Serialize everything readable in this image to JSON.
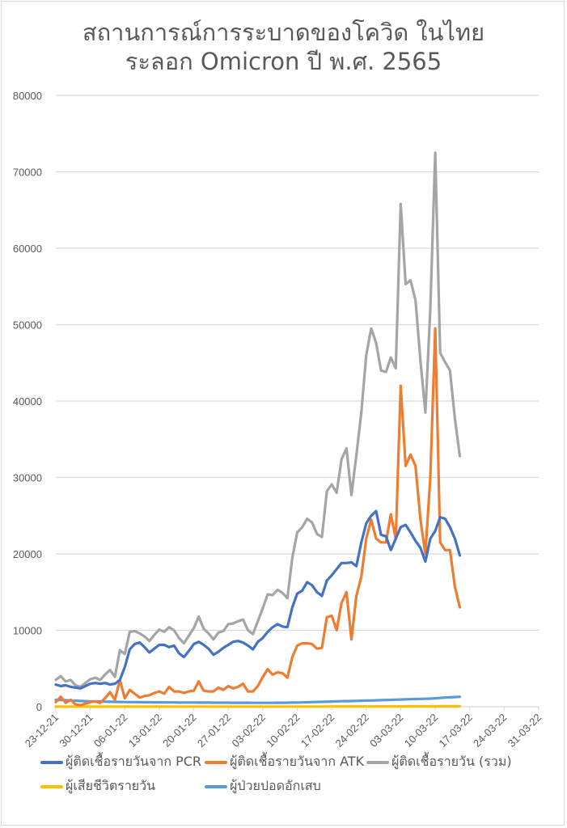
{
  "chart_data": {
    "type": "line",
    "title": [
      "สถานการณ์การระบาดของโควิด ในไทย",
      "ระลอก Omicron ปี พ.ศ. 2565"
    ],
    "xlabel": "",
    "ylabel": "",
    "ylim": [
      0,
      80000
    ],
    "yticks": [
      "0",
      "10000",
      "20000",
      "30000",
      "40000",
      "50000",
      "60000",
      "70000",
      "80000"
    ],
    "xlim": [
      "23-12-21",
      "31-03-22"
    ],
    "xticks": [
      "23-12-21",
      "30-12-21",
      "06-01-22",
      "13-01-22",
      "20-01-22",
      "27-01-22",
      "03-02-22",
      "10-02-22",
      "17-02-22",
      "24-02-22",
      "03-03-22",
      "10-03-22",
      "17-03-22",
      "24-03-22",
      "31-03-22"
    ],
    "grid": "horizontal",
    "legend_position": "bottom",
    "dates": [
      "23-12-21",
      "24-12-21",
      "25-12-21",
      "26-12-21",
      "27-12-21",
      "28-12-21",
      "29-12-21",
      "30-12-21",
      "31-12-21",
      "01-01-22",
      "02-01-22",
      "03-01-22",
      "04-01-22",
      "05-01-22",
      "06-01-22",
      "07-01-22",
      "08-01-22",
      "09-01-22",
      "10-01-22",
      "11-01-22",
      "12-01-22",
      "13-01-22",
      "14-01-22",
      "15-01-22",
      "16-01-22",
      "17-01-22",
      "18-01-22",
      "19-01-22",
      "20-01-22",
      "21-01-22",
      "22-01-22",
      "23-01-22",
      "24-01-22",
      "25-01-22",
      "26-01-22",
      "27-01-22",
      "28-01-22",
      "29-01-22",
      "30-01-22",
      "31-01-22",
      "01-02-22",
      "02-02-22",
      "03-02-22",
      "04-02-22",
      "05-02-22",
      "06-02-22",
      "07-02-22",
      "08-02-22",
      "09-02-22",
      "10-02-22",
      "11-02-22",
      "12-02-22",
      "13-02-22",
      "14-02-22",
      "15-02-22",
      "16-02-22",
      "17-02-22",
      "18-02-22",
      "19-02-22",
      "20-02-22",
      "21-02-22",
      "22-02-22",
      "23-02-22",
      "24-02-22",
      "25-02-22",
      "26-02-22",
      "27-02-22",
      "28-02-22",
      "01-03-22",
      "02-03-22",
      "03-03-22",
      "04-03-22",
      "05-03-22",
      "06-03-22",
      "07-03-22",
      "08-03-22",
      "09-03-22",
      "10-03-22",
      "11-03-22",
      "12-03-22",
      "13-03-22",
      "14-03-22",
      "15-03-22"
    ],
    "series": [
      {
        "name": "ผู้ติดเชื้อรายวันจาก PCR",
        "color": "#4472c4",
        "values": [
          2900,
          2700,
          2800,
          2600,
          2500,
          2400,
          2700,
          3000,
          3100,
          3000,
          3100,
          2900,
          3000,
          3500,
          5200,
          7500,
          8200,
          8400,
          7800,
          7100,
          7600,
          8100,
          8100,
          7800,
          8000,
          7000,
          6500,
          7300,
          8200,
          8500,
          8100,
          7600,
          6800,
          7200,
          7700,
          8100,
          8500,
          8600,
          8400,
          8000,
          7500,
          8500,
          9000,
          9800,
          10400,
          10800,
          10500,
          10400,
          13000,
          14800,
          15200,
          16300,
          15900,
          15000,
          14500,
          16500,
          17200,
          18000,
          18800,
          18800,
          18900,
          18400,
          21500,
          24000,
          25000,
          25600,
          22500,
          22300,
          20500,
          22000,
          23500,
          23800,
          22800,
          21700,
          20800,
          19000,
          22000,
          23000,
          24800,
          24600,
          23500,
          22000,
          19800
        ]
      },
      {
        "name": "ผู้ติดเชื้อรายวันจาก ATK",
        "color": "#ed7d31",
        "values": [
          600,
          1300,
          500,
          900,
          300,
          200,
          400,
          600,
          700,
          500,
          1100,
          1900,
          900,
          3500,
          1100,
          2200,
          1700,
          1200,
          1400,
          1500,
          1800,
          2000,
          1700,
          2600,
          2000,
          2000,
          1800,
          2000,
          2100,
          3300,
          2100,
          2000,
          2000,
          2500,
          2200,
          2700,
          2400,
          2600,
          3000,
          2000,
          2000,
          2700,
          3900,
          4900,
          4200,
          4500,
          4400,
          3800,
          6500,
          8000,
          8300,
          8300,
          8200,
          7600,
          7700,
          11700,
          11900,
          10000,
          13600,
          15000,
          8800,
          14500,
          17000,
          22000,
          24500,
          22000,
          21500,
          21500,
          25200,
          22000,
          42000,
          31500,
          33000,
          31500,
          24500,
          20000,
          30000,
          49500,
          21500,
          20500,
          20500,
          15700,
          13000
        ]
      },
      {
        "name": "ผู้ติดเชื้อรายวัน (รวม)",
        "color": "#a5a5a5",
        "values": [
          3500,
          4000,
          3300,
          3500,
          2800,
          2600,
          3100,
          3600,
          3800,
          3500,
          4200,
          4800,
          3900,
          7400,
          6900,
          9800,
          9900,
          9600,
          9200,
          8600,
          9400,
          10100,
          9800,
          10400,
          10000,
          9000,
          8300,
          9300,
          10300,
          11800,
          10200,
          9600,
          8800,
          9700,
          9900,
          10800,
          10900,
          11200,
          11400,
          10000,
          9500,
          11200,
          12900,
          14700,
          14600,
          15300,
          14900,
          14200,
          19500,
          22800,
          23500,
          24600,
          24100,
          22600,
          22200,
          28200,
          29100,
          28000,
          32400,
          33800,
          27700,
          32900,
          38500,
          46000,
          49500,
          47600,
          44000,
          43800,
          45700,
          44300,
          65800,
          55300,
          55800,
          53200,
          45300,
          38500,
          52000,
          72500,
          46300,
          45100,
          44000,
          37700,
          32800
        ]
      },
      {
        "name": "ผู้เสียชีวิตรายวัน",
        "color": "#ffc000",
        "values": [
          15,
          14,
          13,
          12,
          12,
          12,
          13,
          14,
          14,
          13,
          12,
          12,
          13,
          14,
          14,
          13,
          13,
          12,
          13,
          14,
          14,
          15,
          15,
          15,
          14,
          16,
          15,
          14,
          16,
          17,
          16,
          15,
          14,
          15,
          16,
          17,
          18,
          17,
          16,
          18,
          19,
          20,
          21,
          20,
          21,
          22,
          22,
          21,
          22,
          24,
          25,
          24,
          23,
          24,
          25,
          26,
          27,
          28,
          29,
          30,
          31,
          32,
          33,
          34,
          35,
          36,
          38,
          40,
          42,
          44,
          46,
          48,
          50,
          52,
          54,
          55,
          57,
          58,
          60,
          62,
          64,
          66,
          68
        ]
      },
      {
        "name": "ผู้ป่วยปอดอักเสบ",
        "color": "#5b9bd5",
        "values": [
          900,
          880,
          850,
          800,
          780,
          750,
          720,
          700,
          690,
          680,
          660,
          650,
          640,
          620,
          610,
          600,
          600,
          590,
          580,
          580,
          570,
          570,
          560,
          560,
          560,
          550,
          550,
          550,
          550,
          540,
          540,
          540,
          530,
          530,
          530,
          530,
          520,
          520,
          520,
          520,
          510,
          510,
          510,
          510,
          510,
          520,
          520,
          530,
          540,
          550,
          560,
          580,
          600,
          620,
          640,
          660,
          680,
          700,
          720,
          730,
          740,
          760,
          780,
          800,
          820,
          840,
          860,
          880,
          900,
          920,
          940,
          960,
          980,
          1000,
          1020,
          1040,
          1060,
          1100,
          1150,
          1200,
          1230,
          1260,
          1300
        ]
      }
    ]
  }
}
